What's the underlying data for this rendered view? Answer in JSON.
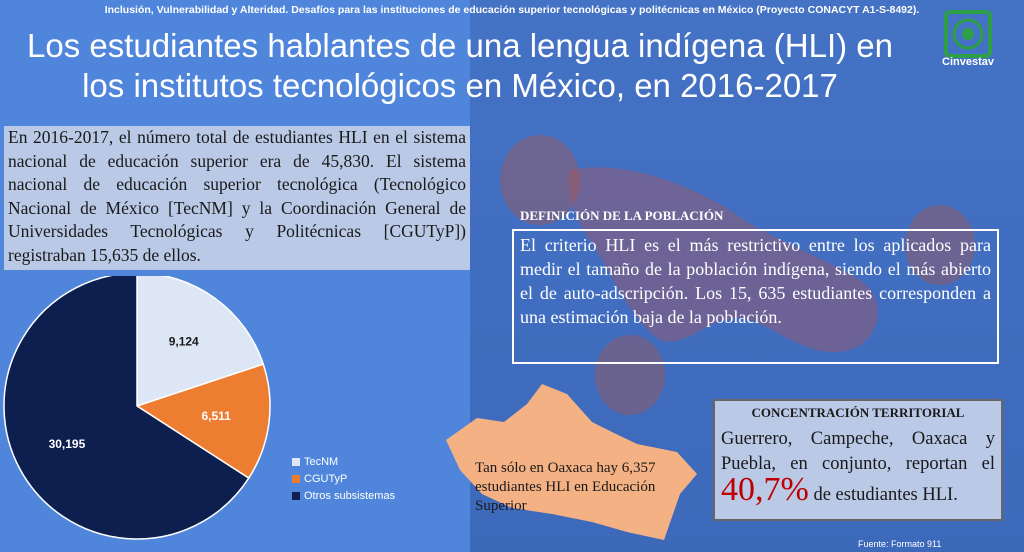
{
  "banner": "Inclusión, Vulnerabilidad y Alteridad. Desafíos para las instituciones de educación superior tecnológicas y politécnicas en México (Proyecto CONACYT A1-S-8492).",
  "title_line1": "Los estudiantes hablantes de una lengua indígena (HLI) en",
  "title_line2": "los institutos tecnológicos en México, en 2016-2017",
  "logo_text": "Cinvestav",
  "intro": "En 2016-2017, el número total de estudiantes HLI en el sistema nacional de educación superior era de 45,830. El sistema nacional de educación superior tecnológica (Tecnológico Nacional de México [TecNM] y la Coordinación General de Universidades Tecnológicas y Politécnicas [CGUTyP]) registraban 15,635 de ellos.",
  "definition_heading": "DEFINICIÓN DE LA POBLACIÓN",
  "definition_text": "El criterio HLI es el más restrictivo entre los aplicados para medir el tamaño de la población indígena, siendo el más abierto el de auto-adscripción. Los 15, 635 estudiantes corresponden a una estimación baja de la población.",
  "oaxaca_text": "Tan sólo en Oaxaca hay 6,357 estudiantes HLI en Educación Superior",
  "concentration": {
    "title": "CONCENTRACIÓN TERRITORIAL",
    "text": "Guerrero, Campeche, Oaxaca y Puebla, en conjunto, reportan el",
    "percent": "40,7%",
    "suffix": "de estudiantes HLI."
  },
  "source": "Fuente: Formato 911",
  "chart_data": {
    "type": "pie",
    "categories": [
      "TecNM",
      "CGUTyP",
      "Otros subsistemas"
    ],
    "values": [
      9124,
      6511,
      30195
    ],
    "labels": [
      "9,124",
      "6,511",
      "30,195"
    ],
    "colors": [
      "#dde6f5",
      "#ed7d31",
      "#0d1f4f"
    ],
    "legend_position": "right"
  }
}
